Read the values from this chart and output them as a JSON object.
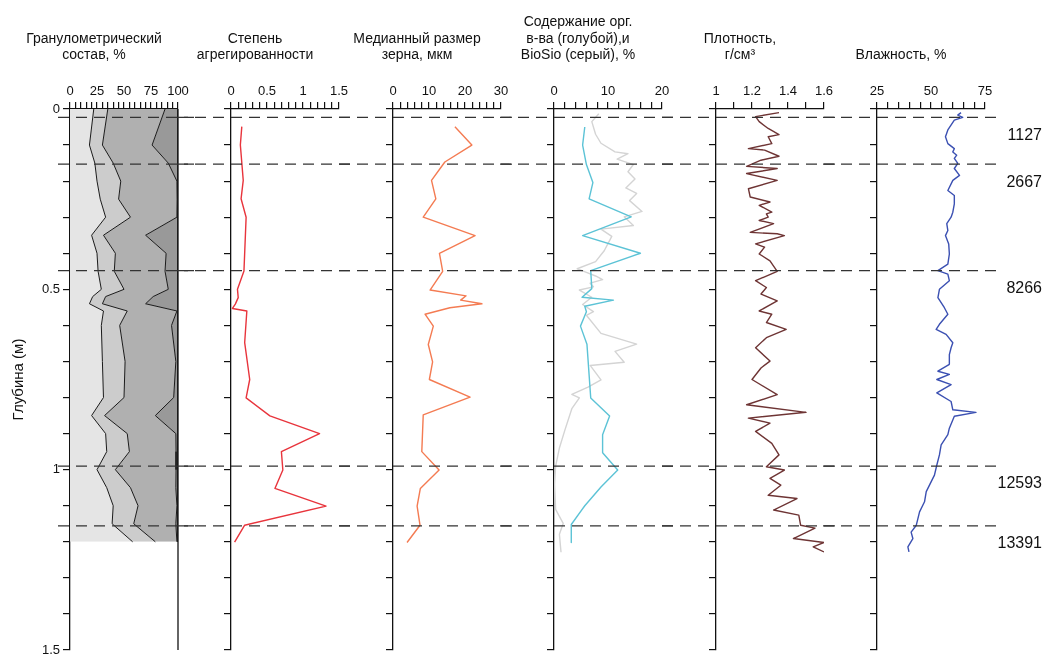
{
  "chart_data": [
    {
      "type": "area",
      "title": "Гранулометрический\nсостав, %",
      "ylabel": "Глубина (м)",
      "orientation": "horizontal",
      "stacked": true,
      "x": [
        0,
        0.1,
        0.15,
        0.2,
        0.25,
        0.3,
        0.35,
        0.4,
        0.45,
        0.5,
        0.52,
        0.54,
        0.56,
        0.6,
        0.7,
        0.8,
        0.85,
        0.9,
        0.95,
        1.0,
        1.05,
        1.1,
        1.15,
        1.2
      ],
      "series": [
        {
          "color": "#e5e5e5",
          "values": [
            22,
            18,
            23,
            25,
            28,
            33,
            20,
            25,
            26,
            29,
            21,
            18,
            31,
            29,
            30,
            31,
            20,
            33,
            34,
            25,
            34,
            40,
            39,
            58
          ]
        },
        {
          "color": "#cccccc",
          "values": [
            13,
            12,
            17,
            22,
            17,
            23,
            11,
            17,
            15,
            21,
            12,
            12,
            22,
            17,
            21,
            19,
            12,
            20,
            21,
            17,
            22,
            23,
            20,
            21
          ]
        },
        {
          "color": "#b0b0b0",
          "values": [
            53,
            46,
            51,
            52,
            54.2,
            43,
            39,
            47,
            47,
            41,
            44,
            40,
            46,
            48,
            47,
            46,
            47,
            45,
            43.2,
            56.2,
            42,
            36,
            39,
            20
          ]
        },
        {
          "color": "#999999",
          "values": [
            12,
            24,
            9,
            1,
            0.8,
            1,
            30,
            11,
            12,
            9,
            23,
            30,
            1,
            6,
            2,
            4,
            21,
            2,
            1.8,
            1.8,
            2,
            1,
            2,
            1
          ]
        }
      ],
      "xlim": [
        0,
        100
      ],
      "xticks": [
        0,
        {
          "value": 5,
          "label": null
        },
        {
          "value": 10,
          "label": null
        },
        {
          "value": 15,
          "label": null
        },
        {
          "value": 20,
          "label": null
        },
        25,
        {
          "value": 30,
          "label": null
        },
        {
          "value": 35,
          "label": null
        },
        {
          "value": 40,
          "label": null
        },
        {
          "value": 45,
          "label": null
        },
        50,
        {
          "value": 55,
          "label": null
        },
        {
          "value": 60,
          "label": null
        },
        {
          "value": 65,
          "label": null
        },
        {
          "value": 70,
          "label": null
        },
        75,
        {
          "value": 80,
          "label": null
        },
        {
          "value": 85,
          "label": null
        },
        {
          "value": 90,
          "label": null
        },
        {
          "value": 95,
          "label": null
        },
        100
      ],
      "ylim": [
        1.5,
        0
      ],
      "yticks": [
        0,
        {
          "value": 0.1,
          "label": null
        },
        {
          "value": 0.2,
          "label": null
        },
        {
          "value": 0.3,
          "label": null
        },
        {
          "value": 0.4,
          "label": null
        },
        0.5,
        {
          "value": 0.6,
          "label": null
        },
        {
          "value": 0.7,
          "label": null
        },
        {
          "value": 0.8,
          "label": null
        },
        {
          "value": 0.9,
          "label": null
        },
        1,
        {
          "value": 1.1,
          "label": null
        },
        {
          "value": 1.2,
          "label": null
        },
        {
          "value": 1.3,
          "label": null
        },
        {
          "value": 1.4,
          "label": null
        },
        1.5
      ],
      "ref_lines": [
        {
          "axis": "y",
          "value": 0.023
        },
        {
          "axis": "y",
          "value": 0.153
        },
        {
          "axis": "y",
          "value": 0.448
        },
        {
          "axis": "y",
          "value": 0.99
        },
        {
          "axis": "y",
          "value": 1.156
        }
      ]
    },
    {
      "type": "line",
      "title": "Степень\nагрегированности",
      "orientation": "horizontal",
      "tick_labels": "x",
      "x": [
        0.049,
        0.1,
        0.198,
        0.249,
        0.3,
        0.449,
        0.5,
        0.523,
        0.541,
        0.553,
        0.56,
        0.648,
        0.75,
        0.801,
        0.851,
        0.9,
        0.95,
        1.001,
        1.052,
        1.101,
        1.154,
        1.201
      ],
      "series": [
        {
          "color": "#e8343c",
          "values": [
            0.15,
            0.13,
            0.17,
            0.14,
            0.21,
            0.18,
            0.09,
            0.1,
            0.06,
            0.02,
            0.22,
            0.19,
            0.26,
            0.21,
            0.54,
            1.23,
            0.7,
            0.72,
            0.61,
            1.32,
            0.19,
            0.05
          ]
        }
      ],
      "xlim": [
        0,
        1.5
      ],
      "xticks": [
        0,
        {
          "value": 0.1,
          "label": null
        },
        {
          "value": 0.2,
          "label": null
        },
        {
          "value": 0.3,
          "label": null
        },
        {
          "value": 0.4,
          "label": null
        },
        0.5,
        {
          "value": 0.6,
          "label": null
        },
        {
          "value": 0.7,
          "label": null
        },
        {
          "value": 0.8,
          "label": null
        },
        {
          "value": 0.9,
          "label": null
        },
        1,
        {
          "value": 1.1,
          "label": null
        },
        {
          "value": 1.2,
          "label": null
        },
        {
          "value": 1.3,
          "label": null
        },
        {
          "value": 1.4,
          "label": null
        },
        1.5
      ],
      "ylim": [
        1.5,
        0
      ],
      "yticks": [
        0,
        {
          "value": 0.1,
          "label": null
        },
        {
          "value": 0.2,
          "label": null
        },
        {
          "value": 0.3,
          "label": null
        },
        {
          "value": 0.4,
          "label": null
        },
        0.5,
        {
          "value": 0.6,
          "label": null
        },
        {
          "value": 0.7,
          "label": null
        },
        {
          "value": 0.8,
          "label": null
        },
        {
          "value": 0.9,
          "label": null
        },
        1,
        {
          "value": 1.1,
          "label": null
        },
        {
          "value": 1.2,
          "label": null
        },
        {
          "value": 1.3,
          "label": null
        },
        {
          "value": 1.4,
          "label": null
        },
        1.5
      ],
      "ref_lines": [
        {
          "axis": "y",
          "value": 0.023
        },
        {
          "axis": "y",
          "value": 0.153
        },
        {
          "axis": "y",
          "value": 0.448
        },
        {
          "axis": "y",
          "value": 0.99
        },
        {
          "axis": "y",
          "value": 1.156
        }
      ]
    },
    {
      "type": "line",
      "title": "Медианный размер\nзерна, мкм",
      "orientation": "horizontal",
      "tick_labels": "x",
      "x": [
        0.049,
        0.1,
        0.147,
        0.198,
        0.249,
        0.3,
        0.351,
        0.4,
        0.45,
        0.502,
        0.518,
        0.53,
        0.54,
        0.551,
        0.569,
        0.602,
        0.653,
        0.701,
        0.75,
        0.799,
        0.848,
        0.95,
        1.001,
        1.052,
        1.101,
        1.154,
        1.202
      ],
      "series": [
        {
          "color": "#f47b52",
          "values": [
            17.2,
            21.9,
            14.4,
            10.7,
            11.9,
            8.4,
            22.8,
            12.9,
            13.8,
            10.3,
            20.3,
            18.8,
            24.7,
            15.8,
            8.9,
            11.2,
            9.8,
            11.0,
            10.1,
            21.4,
            8.4,
            8.0,
            12.8,
            7.6,
            6.7,
            7.5,
            3.9
          ]
        }
      ],
      "xlim": [
        0,
        30
      ],
      "xticks": [
        0,
        {
          "value": 2,
          "label": null
        },
        {
          "value": 4,
          "label": null
        },
        {
          "value": 6,
          "label": null
        },
        {
          "value": 8,
          "label": null
        },
        10,
        {
          "value": 12,
          "label": null
        },
        {
          "value": 14,
          "label": null
        },
        {
          "value": 16,
          "label": null
        },
        {
          "value": 18,
          "label": null
        },
        20,
        {
          "value": 22,
          "label": null
        },
        {
          "value": 24,
          "label": null
        },
        {
          "value": 26,
          "label": null
        },
        {
          "value": 28,
          "label": null
        },
        30
      ],
      "ylim": [
        1.5,
        0
      ],
      "yticks": [
        0,
        {
          "value": 0.1,
          "label": null
        },
        {
          "value": 0.2,
          "label": null
        },
        {
          "value": 0.3,
          "label": null
        },
        {
          "value": 0.4,
          "label": null
        },
        0.5,
        {
          "value": 0.6,
          "label": null
        },
        {
          "value": 0.7,
          "label": null
        },
        {
          "value": 0.8,
          "label": null
        },
        {
          "value": 0.9,
          "label": null
        },
        1,
        {
          "value": 1.1,
          "label": null
        },
        {
          "value": 1.2,
          "label": null
        },
        {
          "value": 1.3,
          "label": null
        },
        {
          "value": 1.4,
          "label": null
        },
        1.5
      ],
      "ref_lines": [
        {
          "axis": "y",
          "value": 0.023
        },
        {
          "axis": "y",
          "value": 0.153
        },
        {
          "axis": "y",
          "value": 0.448
        },
        {
          "axis": "y",
          "value": 0.99
        },
        {
          "axis": "y",
          "value": 1.156
        }
      ]
    },
    {
      "type": "line",
      "title": "Содержание орг.\nв-ва (голубой),и\nBioSio (серый), %",
      "orientation": "horizontal",
      "tick_labels": "x",
      "series": [
        {
          "color": "#5cc3d6",
          "x": [
            0.05,
            0.1,
            0.154,
            0.204,
            0.249,
            0.299,
            0.351,
            0.4,
            0.448,
            0.498,
            0.522,
            0.53,
            0.547,
            0.562,
            0.602,
            0.652,
            0.801,
            0.851,
            0.903,
            0.953,
            1.001,
            1.048,
            1.1,
            1.152,
            1.202
          ],
          "values": [
            5.7,
            5.3,
            6.0,
            7.2,
            6.5,
            14.3,
            5.3,
            16.0,
            6.8,
            7.0,
            5.2,
            11.0,
            5.7,
            6.0,
            4.9,
            6.1,
            6.8,
            10.3,
            9.0,
            9.0,
            11.8,
            8.7,
            5.7,
            3.2,
            3.2
          ]
        },
        {
          "color": "#d4d4d4",
          "x": [
            0.013,
            0.035,
            0.07,
            0.095,
            0.119,
            0.124,
            0.139,
            0.154,
            0.174,
            0.194,
            0.219,
            0.234,
            0.254,
            0.284,
            0.299,
            0.323,
            0.333,
            0.353,
            0.393,
            0.423,
            0.443,
            0.453,
            0.463,
            0.473,
            0.483,
            0.493,
            0.502,
            0.522,
            0.542,
            0.562,
            0.572,
            0.622,
            0.652,
            0.672,
            0.702,
            0.711,
            0.731,
            0.751,
            0.771,
            0.791,
            0.801,
            0.831,
            0.891,
            0.94,
            0.99,
            1.04,
            1.11,
            1.149,
            1.179,
            1.229
          ],
          "values": [
            8.3,
            7.0,
            7.7,
            8.7,
            11.3,
            13.7,
            11.7,
            14.7,
            13.7,
            15.0,
            13.3,
            15.3,
            14.0,
            16.3,
            13.0,
            14.7,
            8.7,
            10.7,
            9.3,
            7.7,
            4.3,
            6.0,
            7.7,
            9.0,
            6.7,
            7.3,
            4.7,
            7.0,
            5.3,
            7.3,
            6.0,
            8.7,
            15.3,
            11.3,
            13.0,
            6.7,
            7.7,
            8.7,
            6.3,
            3.3,
            4.7,
            3.3,
            2.0,
            1.0,
            0.3,
            0.1,
            0.3,
            1.7,
            1.0,
            1.3
          ]
        }
      ],
      "xlim": [
        0,
        20
      ],
      "xticks": [
        0,
        {
          "value": 2,
          "label": null
        },
        {
          "value": 4,
          "label": null
        },
        {
          "value": 6,
          "label": null
        },
        {
          "value": 8,
          "label": null
        },
        10,
        {
          "value": 12,
          "label": null
        },
        {
          "value": 14,
          "label": null
        },
        {
          "value": 16,
          "label": null
        },
        {
          "value": 18,
          "label": null
        },
        20
      ],
      "ylim": [
        1.5,
        0
      ],
      "yticks": [
        0,
        {
          "value": 0.1,
          "label": null
        },
        {
          "value": 0.2,
          "label": null
        },
        {
          "value": 0.3,
          "label": null
        },
        {
          "value": 0.4,
          "label": null
        },
        0.5,
        {
          "value": 0.6,
          "label": null
        },
        {
          "value": 0.7,
          "label": null
        },
        {
          "value": 0.8,
          "label": null
        },
        {
          "value": 0.9,
          "label": null
        },
        1,
        {
          "value": 1.1,
          "label": null
        },
        {
          "value": 1.2,
          "label": null
        },
        {
          "value": 1.3,
          "label": null
        },
        {
          "value": 1.4,
          "label": null
        },
        1.5
      ],
      "ref_lines": [
        {
          "axis": "y",
          "value": 0.023
        },
        {
          "axis": "y",
          "value": 0.153
        },
        {
          "axis": "y",
          "value": 0.448
        },
        {
          "axis": "y",
          "value": 0.99
        },
        {
          "axis": "y",
          "value": 1.156
        }
      ]
    },
    {
      "type": "line",
      "title": "Плотность,\nг/см³",
      "orientation": "horizontal",
      "tick_labels": "x",
      "x": [
        0.01,
        0.021,
        0.035,
        0.054,
        0.071,
        0.077,
        0.096,
        0.11,
        0.114,
        0.131,
        0.142,
        0.159,
        0.165,
        0.179,
        0.198,
        0.221,
        0.244,
        0.258,
        0.267,
        0.286,
        0.291,
        0.3,
        0.309,
        0.318,
        0.342,
        0.346,
        0.351,
        0.374,
        0.383,
        0.402,
        0.421,
        0.45,
        0.476,
        0.495,
        0.513,
        0.532,
        0.56,
        0.569,
        0.592,
        0.611,
        0.634,
        0.662,
        0.699,
        0.718,
        0.75,
        0.792,
        0.82,
        0.841,
        0.857,
        0.871,
        0.894,
        0.927,
        0.959,
        0.992,
        1.001,
        1.024,
        1.043,
        1.071,
        1.08,
        1.112,
        1.126,
        1.154,
        1.162,
        1.191,
        1.202,
        1.214,
        1.228
      ],
      "series": [
        {
          "color": "#6e3434",
          "values": [
            1.35,
            1.22,
            1.24,
            1.29,
            1.35,
            1.29,
            1.31,
            1.18,
            1.27,
            1.35,
            1.25,
            1.17,
            1.34,
            1.17,
            1.34,
            1.18,
            1.19,
            1.3,
            1.24,
            1.31,
            1.28,
            1.29,
            1.24,
            1.32,
            1.19,
            1.34,
            1.38,
            1.22,
            1.27,
            1.24,
            1.3,
            1.34,
            1.22,
            1.28,
            1.25,
            1.34,
            1.24,
            1.31,
            1.28,
            1.39,
            1.28,
            1.22,
            1.3,
            1.25,
            1.2,
            1.34,
            1.17,
            1.5,
            1.18,
            1.3,
            1.22,
            1.31,
            1.35,
            1.28,
            1.38,
            1.3,
            1.36,
            1.29,
            1.45,
            1.32,
            1.46,
            1.47,
            1.55,
            1.43,
            1.6,
            1.54,
            1.6
          ]
        }
      ],
      "xlim": [
        1,
        1.6
      ],
      "xticks": [
        1,
        {
          "value": 1.1,
          "label": null
        },
        1.2,
        {
          "value": 1.3,
          "label": null
        },
        1.4,
        {
          "value": 1.5,
          "label": null
        },
        1.6
      ],
      "ylim": [
        1.5,
        0
      ],
      "yticks": [
        0,
        {
          "value": 0.1,
          "label": null
        },
        {
          "value": 0.2,
          "label": null
        },
        {
          "value": 0.3,
          "label": null
        },
        {
          "value": 0.4,
          "label": null
        },
        0.5,
        {
          "value": 0.6,
          "label": null
        },
        {
          "value": 0.7,
          "label": null
        },
        {
          "value": 0.8,
          "label": null
        },
        {
          "value": 0.9,
          "label": null
        },
        1,
        {
          "value": 1.1,
          "label": null
        },
        {
          "value": 1.2,
          "label": null
        },
        {
          "value": 1.3,
          "label": null
        },
        {
          "value": 1.4,
          "label": null
        },
        1.5
      ],
      "ref_lines": [
        {
          "axis": "y",
          "value": 0.023
        },
        {
          "axis": "y",
          "value": 0.153
        },
        {
          "axis": "y",
          "value": 0.448
        },
        {
          "axis": "y",
          "value": 0.99
        },
        {
          "axis": "y",
          "value": 1.156
        }
      ]
    },
    {
      "type": "line",
      "title": "Влажность, %",
      "orientation": "horizontal",
      "tick_labels": "x",
      "x": [
        0.01,
        0.017,
        0.023,
        0.031,
        0.058,
        0.077,
        0.096,
        0.11,
        0.119,
        0.128,
        0.137,
        0.151,
        0.165,
        0.184,
        0.198,
        0.226,
        0.24,
        0.263,
        0.286,
        0.3,
        0.318,
        0.337,
        0.351,
        0.374,
        0.402,
        0.43,
        0.448,
        0.458,
        0.476,
        0.5,
        0.523,
        0.551,
        0.569,
        0.597,
        0.611,
        0.625,
        0.648,
        0.662,
        0.681,
        0.708,
        0.727,
        0.736,
        0.75,
        0.764,
        0.787,
        0.811,
        0.834,
        0.841,
        0.852,
        0.885,
        0.903,
        0.931,
        0.959,
        0.987,
        1.015,
        1.033,
        1.061,
        1.089,
        1.117,
        1.154,
        1.173,
        1.191,
        1.214,
        1.228
      ],
      "series": [
        {
          "color": "#3b50b2",
          "values": [
            63.9,
            62.4,
            64.7,
            60.8,
            57.8,
            56.7,
            57.8,
            60.8,
            60.1,
            61.9,
            60.8,
            62.4,
            60.8,
            63.2,
            60.1,
            57.8,
            60.8,
            60.8,
            60.1,
            59.3,
            57.3,
            57.8,
            56.7,
            58.2,
            58.5,
            57.8,
            53.2,
            57.8,
            58.5,
            53.9,
            53.2,
            56.2,
            57.8,
            53.9,
            52.4,
            57.0,
            60.1,
            59.3,
            58.5,
            58.5,
            53.2,
            58.5,
            52.7,
            59.3,
            52.7,
            59.3,
            60.1,
            70.8,
            60.8,
            58.5,
            57.8,
            54.7,
            53.9,
            52.7,
            51.6,
            50.1,
            47.8,
            47.0,
            44.7,
            43.2,
            40.8,
            41.6,
            39.3,
            39.8
          ]
        }
      ],
      "xlim": [
        25,
        75
      ],
      "xticks": [
        25,
        {
          "value": 30,
          "label": null
        },
        {
          "value": 35,
          "label": null
        },
        {
          "value": 40,
          "label": null
        },
        {
          "value": 45,
          "label": null
        },
        50,
        {
          "value": 55,
          "label": null
        },
        {
          "value": 60,
          "label": null
        },
        {
          "value": 65,
          "label": null
        },
        {
          "value": 70,
          "label": null
        },
        75
      ],
      "ylim": [
        1.5,
        0
      ],
      "yticks": [
        0,
        {
          "value": 0.1,
          "label": null
        },
        {
          "value": 0.2,
          "label": null
        },
        {
          "value": 0.3,
          "label": null
        },
        {
          "value": 0.4,
          "label": null
        },
        0.5,
        {
          "value": 0.6,
          "label": null
        },
        {
          "value": 0.7,
          "label": null
        },
        {
          "value": 0.8,
          "label": null
        },
        {
          "value": 0.9,
          "label": null
        },
        1,
        {
          "value": 1.1,
          "label": null
        },
        {
          "value": 1.2,
          "label": null
        },
        {
          "value": 1.3,
          "label": null
        },
        {
          "value": 1.4,
          "label": null
        },
        1.5
      ],
      "ref_lines": [
        {
          "axis": "y",
          "value": 0.023
        },
        {
          "axis": "y",
          "value": 0.153
        },
        {
          "axis": "y",
          "value": 0.448
        },
        {
          "axis": "y",
          "value": 0.99
        },
        {
          "axis": "y",
          "value": 1.156
        }
      ],
      "annotations": [
        "1127",
        "2667",
        "8266",
        "12593",
        "13391"
      ]
    }
  ]
}
